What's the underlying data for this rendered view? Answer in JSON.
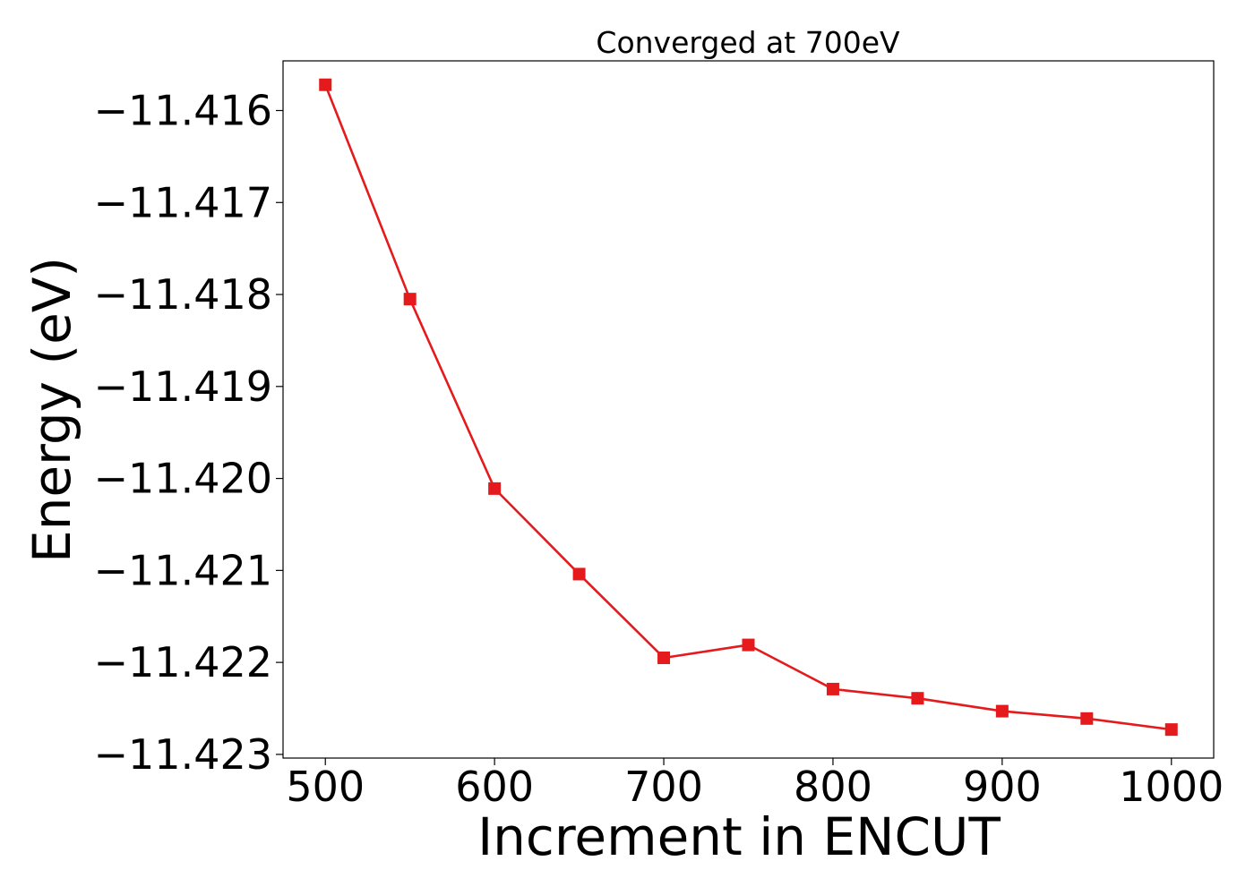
{
  "chart_data": {
    "type": "line",
    "title": "Converged at 700eV",
    "xlabel": "Increment in ENCUT",
    "ylabel": "Energy (eV)",
    "xlim": [
      475,
      1025
    ],
    "ylim": [
      -11.42304,
      -11.41546
    ],
    "x_ticks": [
      500,
      600,
      700,
      800,
      900,
      1000
    ],
    "x_tick_labels": [
      "500",
      "600",
      "700",
      "800",
      "900",
      "1000"
    ],
    "y_ticks": [
      -11.416,
      -11.417,
      -11.418,
      -11.419,
      -11.42,
      -11.421,
      -11.422,
      -11.423
    ],
    "y_tick_labels": [
      "−11.416",
      "−11.417",
      "−11.418",
      "−11.419",
      "−11.420",
      "−11.421",
      "−11.422",
      "−11.423"
    ],
    "grid": false,
    "series": [
      {
        "color": "#e41a1c",
        "marker": "square",
        "x": [
          500,
          550,
          600,
          650,
          700,
          750,
          800,
          850,
          900,
          950,
          1000
        ],
        "y": [
          -11.41572,
          -11.41805,
          -11.42011,
          -11.42104,
          -11.42195,
          -11.42181,
          -11.42229,
          -11.42239,
          -11.42253,
          -11.42261,
          -11.42273
        ]
      }
    ]
  }
}
